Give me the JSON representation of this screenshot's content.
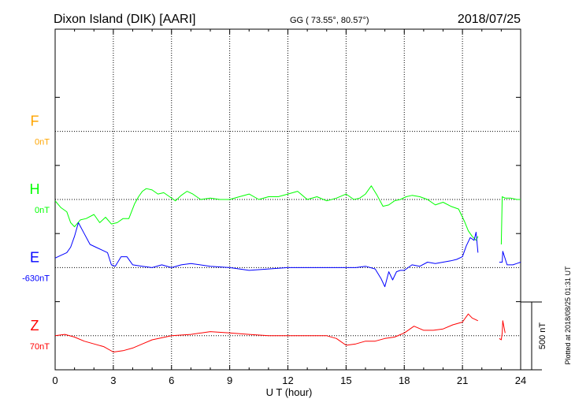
{
  "header": {
    "station": "Dixon Island (DIK)  [AARI]",
    "coords": "GG ( 73.55°,  80.57°)",
    "date": "2018/07/25"
  },
  "chart_data": {
    "type": "line",
    "title": "Dixon Island (DIK)  [AARI]",
    "xlabel": "U T (hour)",
    "xlim": [
      0,
      24
    ],
    "xticks": [
      0,
      3,
      6,
      9,
      12,
      15,
      18,
      21,
      24
    ],
    "xtick_labels": [
      "0",
      "3",
      "6",
      "9",
      "12",
      "15",
      "18",
      "21",
      "24"
    ],
    "scale_bar": {
      "label": "500 nT",
      "value_nT": 500
    },
    "plotted_note": "Plotted at 2018/08/25 01:31  UT",
    "series": [
      {
        "name": "F",
        "baseline_label": "0nT",
        "baseline_nT": 0,
        "color": "#ffa500",
        "offset_units": 3.5,
        "x": [],
        "values": []
      },
      {
        "name": "H",
        "baseline_label": "0nT",
        "baseline_nT": 0,
        "color": "#00ff00",
        "offset_units": 2.5,
        "x": [
          0,
          0.3,
          0.6,
          0.8,
          1.0,
          1.3,
          1.6,
          2.0,
          2.3,
          2.6,
          2.9,
          3.2,
          3.5,
          3.8,
          4.1,
          4.3,
          4.5,
          4.7,
          5.0,
          5.3,
          5.6,
          5.9,
          6.2,
          6.5,
          6.8,
          7.1,
          7.5,
          8.0,
          8.5,
          9.0,
          9.5,
          10.0,
          10.5,
          11.0,
          11.5,
          12.0,
          12.5,
          13.0,
          13.5,
          14.0,
          14.5,
          15.0,
          15.4,
          15.7,
          16.0,
          16.3,
          16.6,
          16.9,
          17.2,
          17.5,
          17.8,
          18.1,
          18.4,
          18.8,
          19.2,
          19.6,
          20.0,
          20.4,
          20.8,
          21.1,
          21.3,
          21.5,
          21.7,
          21.8
        ],
        "values": [
          -10,
          -60,
          -90,
          -170,
          -200,
          -150,
          -140,
          -110,
          -170,
          -130,
          -180,
          -170,
          -140,
          -140,
          -30,
          20,
          60,
          80,
          70,
          40,
          50,
          20,
          -10,
          30,
          60,
          40,
          0,
          10,
          0,
          0,
          20,
          40,
          0,
          20,
          20,
          40,
          60,
          0,
          20,
          -10,
          10,
          40,
          0,
          10,
          40,
          100,
          30,
          -50,
          -40,
          -10,
          0,
          20,
          30,
          20,
          0,
          -40,
          -20,
          -50,
          -70,
          -160,
          -230,
          -270,
          -300,
          -270
        ]
      },
      {
        "name": "H",
        "baseline_label": "",
        "baseline_nT": 0,
        "color": "#00ff00",
        "offset_units": 2.5,
        "x": [
          23.0,
          23.05,
          23.2,
          23.5,
          23.8,
          24.0
        ],
        "values": [
          -330,
          20,
          10,
          10,
          0,
          0
        ]
      },
      {
        "name": "E",
        "baseline_label": "-630nT",
        "baseline_nT": -630,
        "color": "#0000ff",
        "offset_units": 1.5,
        "x": [
          0,
          0.3,
          0.6,
          0.8,
          1.0,
          1.2,
          1.5,
          1.8,
          2.1,
          2.4,
          2.7,
          2.9,
          3.1,
          3.4,
          3.7,
          4.0,
          4.5,
          5.0,
          5.5,
          6.0,
          6.5,
          7.0,
          8.0,
          9.0,
          10.0,
          11.0,
          12.0,
          13.0,
          14.0,
          15.0,
          15.5,
          16.0,
          16.5,
          16.8,
          17.0,
          17.2,
          17.4,
          17.6,
          17.8,
          18.0,
          18.4,
          18.8,
          19.2,
          19.6,
          20.0,
          20.4,
          20.7,
          21.0,
          21.2,
          21.4,
          21.6,
          21.7,
          21.8
        ],
        "values": [
          70,
          90,
          110,
          150,
          230,
          330,
          250,
          170,
          150,
          130,
          110,
          20,
          10,
          80,
          80,
          20,
          10,
          0,
          20,
          0,
          20,
          30,
          10,
          0,
          -20,
          -10,
          0,
          0,
          0,
          0,
          0,
          10,
          -10,
          -80,
          -140,
          -30,
          -90,
          -30,
          -20,
          -20,
          20,
          10,
          40,
          30,
          40,
          50,
          60,
          80,
          160,
          220,
          200,
          260,
          110
        ]
      },
      {
        "name": "E",
        "baseline_label": "",
        "baseline_nT": -630,
        "color": "#0000ff",
        "offset_units": 1.5,
        "x": [
          22.9,
          23.05,
          23.08,
          23.3,
          23.6,
          23.8,
          24.0
        ],
        "values": [
          40,
          40,
          120,
          20,
          20,
          30,
          40
        ]
      },
      {
        "name": "Z",
        "baseline_label": "70nT",
        "baseline_nT": 70,
        "color": "#ff0000",
        "offset_units": 0.5,
        "x": [
          0,
          0.5,
          1.0,
          1.5,
          2.0,
          2.5,
          3.0,
          3.5,
          4.0,
          4.5,
          5.0,
          6.0,
          7.0,
          8.0,
          9.0,
          10.0,
          11.0,
          12.0,
          13.0,
          14.0,
          14.5,
          15.0,
          15.5,
          16.0,
          16.5,
          17.0,
          17.5,
          18.0,
          18.5,
          19.0,
          19.5,
          20.0,
          20.5,
          21.0,
          21.3,
          21.5,
          21.8
        ],
        "values": [
          0,
          10,
          -10,
          -40,
          -60,
          -80,
          -120,
          -110,
          -90,
          -60,
          -30,
          0,
          10,
          30,
          20,
          10,
          0,
          0,
          0,
          0,
          -20,
          -70,
          -60,
          -40,
          -40,
          -20,
          -10,
          20,
          70,
          40,
          40,
          50,
          80,
          100,
          160,
          130,
          110
        ]
      },
      {
        "name": "Z",
        "baseline_label": "",
        "baseline_nT": 70,
        "color": "#ff0000",
        "offset_units": 0.5,
        "x": [
          22.9,
          23.0,
          23.05,
          23.08,
          23.2
        ],
        "values": [
          -20,
          -30,
          20,
          110,
          20
        ]
      }
    ]
  }
}
